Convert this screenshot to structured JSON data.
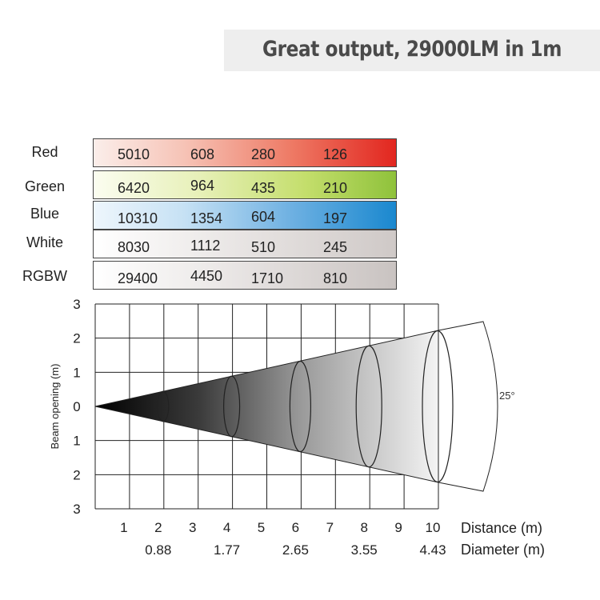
{
  "banner": {
    "text": "Great output,  29000LM in 1m"
  },
  "lux_table": {
    "rows": [
      {
        "label": "Red",
        "color": "red",
        "values": [
          "5010",
          "608",
          "280",
          "126"
        ]
      },
      {
        "label": "Green",
        "color": "green",
        "values": [
          "6420",
          "964",
          "435",
          "210"
        ]
      },
      {
        "label": "Blue",
        "color": "blue",
        "values": [
          "10310",
          "1354",
          "604",
          "197"
        ]
      },
      {
        "label": "White",
        "color": "white",
        "values": [
          "8030",
          "1112",
          "510",
          "245"
        ]
      },
      {
        "label": "RGBW",
        "color": "rgbw",
        "values": [
          "29400",
          "4450",
          "1710",
          "810"
        ]
      }
    ]
  },
  "chart_data": {
    "type": "area",
    "ylabel": "Beam opening (m)",
    "y_tick_labels": [
      "3",
      "2",
      "1",
      "0",
      "1",
      "2",
      "3"
    ],
    "ylim": [
      -3,
      3
    ],
    "x_tick_labels": [
      "1",
      "2",
      "3",
      "4",
      "5",
      "6",
      "7",
      "8",
      "9",
      "10"
    ],
    "xlim": [
      0,
      10
    ],
    "xlabel": "Distance (m)",
    "diameter_label": "Diameter (m)",
    "beam_angle_label": "25°",
    "beam_angle_deg": 25,
    "grid": true,
    "diameter_points": [
      {
        "distance": 2,
        "diameter": 0.88,
        "label": "0.88"
      },
      {
        "distance": 4,
        "diameter": 1.77,
        "label": "1.77"
      },
      {
        "distance": 6,
        "diameter": 2.65,
        "label": "2.65"
      },
      {
        "distance": 8,
        "diameter": 3.55,
        "label": "3.55"
      },
      {
        "distance": 10,
        "diameter": 4.43,
        "label": "4.43"
      }
    ]
  }
}
